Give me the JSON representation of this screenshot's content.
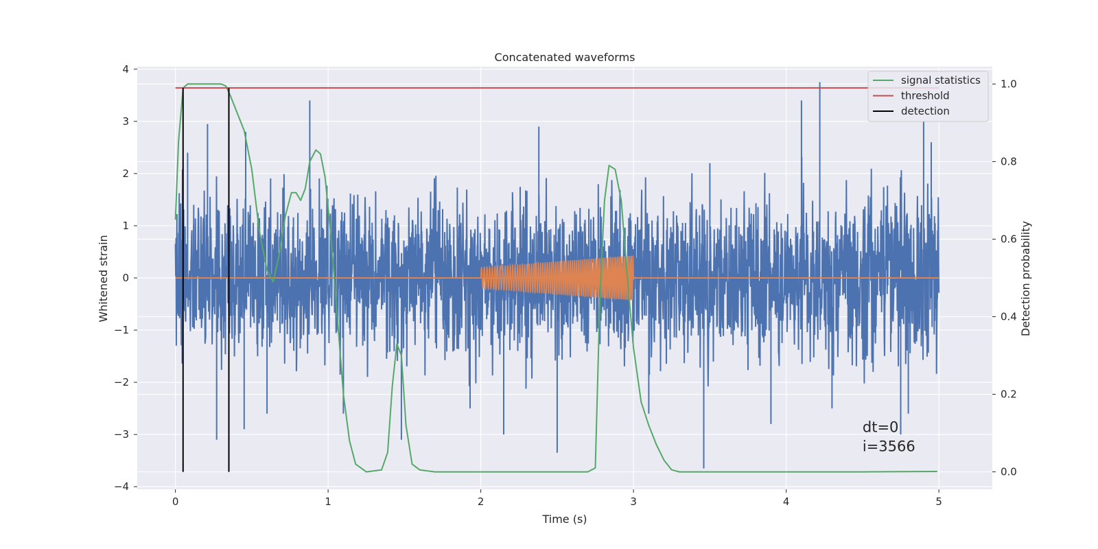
{
  "chart_data": {
    "type": "line",
    "title": "Concatenated waveforms",
    "xlabel": "Time (s)",
    "ylabel": "Whitened strain",
    "y2label": "Detection probability",
    "xlim": [
      -0.25,
      5.35
    ],
    "ylim": [
      -4.05,
      4.05
    ],
    "y2lim": [
      -0.045,
      1.045
    ],
    "xticks": [
      0,
      1,
      2,
      3,
      4,
      5
    ],
    "yticks": [
      -4,
      -3,
      -2,
      -1,
      0,
      1,
      2,
      3,
      4
    ],
    "y2ticks": [
      0.0,
      0.2,
      0.4,
      0.6,
      0.8,
      1.0
    ],
    "xtick_labels": [
      "0",
      "1",
      "2",
      "3",
      "4",
      "5"
    ],
    "ytick_labels": [
      "−4",
      "−3",
      "−2",
      "−1",
      "0",
      "1",
      "2",
      "3",
      "4"
    ],
    "y2tick_labels": [
      "0.0",
      "0.2",
      "0.4",
      "0.6",
      "0.8",
      "1.0"
    ],
    "grid": true,
    "legend_position": "top-right",
    "legend": [
      {
        "name": "signal statistics",
        "color": "#55a868"
      },
      {
        "name": "threshold",
        "color": "#c44e52"
      },
      {
        "name": "detection",
        "color": "#000000"
      }
    ],
    "noise": {
      "color": "#4c72b0",
      "x_range": [
        0,
        5
      ],
      "typical_amplitude": 1.9,
      "peak_values": [
        {
          "x": 0.08,
          "y": 2.4
        },
        {
          "x": 0.12,
          "y": 1.4
        },
        {
          "x": 0.21,
          "y": 2.95
        },
        {
          "x": 0.27,
          "y": -3.1
        },
        {
          "x": 0.35,
          "y": -2.4
        },
        {
          "x": 0.45,
          "y": -2.9
        },
        {
          "x": 0.46,
          "y": 2.8
        },
        {
          "x": 0.6,
          "y": -2.6
        },
        {
          "x": 0.88,
          "y": 3.4
        },
        {
          "x": 1.1,
          "y": -2.6
        },
        {
          "x": 1.48,
          "y": -3.1
        },
        {
          "x": 1.93,
          "y": -2.5
        },
        {
          "x": 2.15,
          "y": -3.0
        },
        {
          "x": 2.38,
          "y": 2.9
        },
        {
          "x": 2.5,
          "y": -3.35
        },
        {
          "x": 3.1,
          "y": -2.6
        },
        {
          "x": 3.46,
          "y": -3.65
        },
        {
          "x": 3.5,
          "y": 2.2
        },
        {
          "x": 3.9,
          "y": -2.8
        },
        {
          "x": 4.1,
          "y": 3.4
        },
        {
          "x": 4.22,
          "y": 3.75
        },
        {
          "x": 4.3,
          "y": -2.5
        },
        {
          "x": 4.75,
          "y": -3.0
        },
        {
          "x": 4.8,
          "y": -2.6
        },
        {
          "x": 4.9,
          "y": 3.0
        },
        {
          "x": 4.95,
          "y": 2.6
        }
      ]
    },
    "injected_signal": {
      "color": "#dd8452",
      "baseline": {
        "x": [
          0,
          5
        ],
        "y": 0
      },
      "chirp": {
        "x_start": 2.0,
        "x_end": 3.0,
        "amp_start": 0.2,
        "amp_end": 0.43,
        "freq_start_hz": 55,
        "freq_end_hz": 90
      }
    },
    "series": [
      {
        "name": "signal statistics",
        "color": "#55a868",
        "axis": "right",
        "x": [
          0.0,
          0.02,
          0.05,
          0.08,
          0.1,
          0.15,
          0.2,
          0.25,
          0.3,
          0.33,
          0.36,
          0.4,
          0.45,
          0.5,
          0.55,
          0.6,
          0.64,
          0.68,
          0.72,
          0.76,
          0.79,
          0.82,
          0.85,
          0.88,
          0.92,
          0.95,
          0.98,
          1.02,
          1.06,
          1.1,
          1.14,
          1.18,
          1.25,
          1.35,
          1.39,
          1.42,
          1.45,
          1.48,
          1.51,
          1.55,
          1.6,
          1.7,
          2.0,
          2.5,
          2.7,
          2.75,
          2.78,
          2.81,
          2.84,
          2.88,
          2.92,
          2.96,
          3.0,
          3.05,
          3.1,
          3.15,
          3.2,
          3.25,
          3.3,
          3.5,
          4.0,
          4.5,
          4.99
        ],
        "y": [
          0.65,
          0.85,
          0.99,
          1.0,
          1.0,
          1.0,
          1.0,
          1.0,
          1.0,
          0.995,
          0.97,
          0.93,
          0.88,
          0.78,
          0.62,
          0.52,
          0.49,
          0.56,
          0.66,
          0.72,
          0.72,
          0.7,
          0.73,
          0.8,
          0.83,
          0.82,
          0.76,
          0.6,
          0.4,
          0.2,
          0.08,
          0.02,
          0.0,
          0.005,
          0.05,
          0.22,
          0.33,
          0.3,
          0.12,
          0.02,
          0.005,
          0.0,
          0.0,
          0.0,
          0.0,
          0.01,
          0.45,
          0.7,
          0.79,
          0.78,
          0.7,
          0.5,
          0.32,
          0.18,
          0.12,
          0.07,
          0.03,
          0.005,
          0.0,
          0.0,
          0.0,
          0.0,
          0.001
        ]
      },
      {
        "name": "threshold",
        "color": "#c44e52",
        "axis": "right",
        "x": [
          0,
          5
        ],
        "y": [
          0.99,
          0.99
        ]
      }
    ],
    "detections": [
      0.05,
      0.35
    ],
    "detection_span_y2": [
      0.0,
      0.99
    ],
    "annotations": [
      {
        "text": "dt=0",
        "x": 4.5,
        "y": -2.95
      },
      {
        "text": "i=3566",
        "x": 4.5,
        "y": -3.32
      }
    ]
  }
}
